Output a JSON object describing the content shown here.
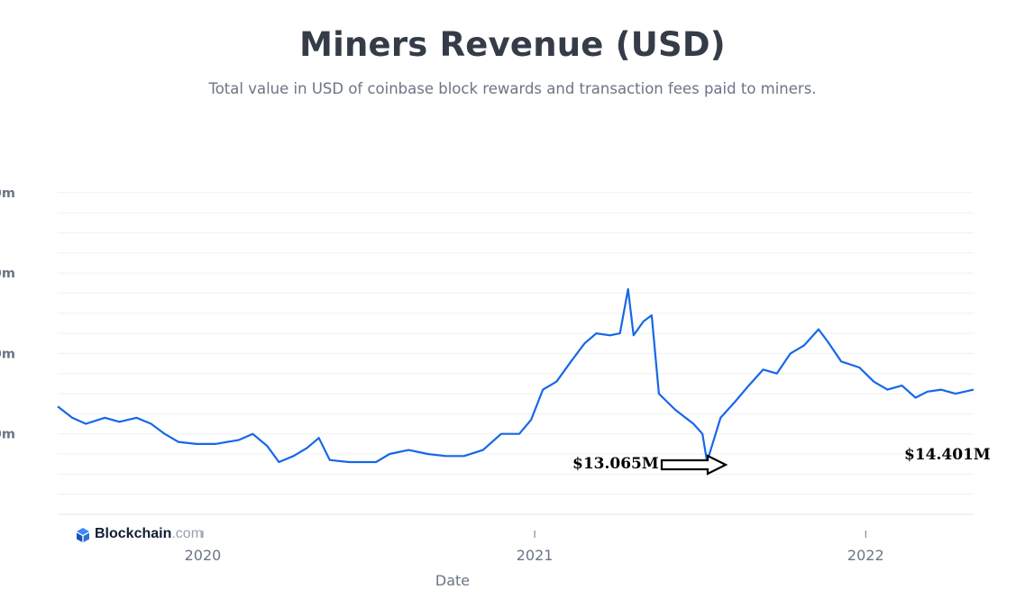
{
  "chart_data": {
    "type": "line",
    "title": "Miners Revenue (USD)",
    "subtitle": "Total value in USD of coinbase block rewards and transaction fees paid to miners.",
    "xlabel": "Date",
    "ylabel": "",
    "x_tick_labels": [
      "2020",
      "2021",
      "2022"
    ],
    "x_range": [
      "2019-07-25",
      "2022-04-30"
    ],
    "y_tick_labels": [
      "0m",
      "0m",
      "0m",
      "0m"
    ],
    "ylim": [
      0,
      80
    ],
    "grid": true,
    "line_color": "#1667e8",
    "series": [
      {
        "points": [
          [
            "2019-07-25",
            26.8
          ],
          [
            "2019-08-10",
            24
          ],
          [
            "2019-08-25",
            22.5
          ],
          [
            "2019-09-15",
            24
          ],
          [
            "2019-10-01",
            23
          ],
          [
            "2019-10-20",
            24
          ],
          [
            "2019-11-05",
            22.5
          ],
          [
            "2019-11-20",
            20
          ],
          [
            "2019-12-05",
            18
          ],
          [
            "2019-12-25",
            17.5
          ],
          [
            "2020-01-15",
            17.5
          ],
          [
            "2020-02-10",
            18.5
          ],
          [
            "2020-02-25",
            20
          ],
          [
            "2020-03-12",
            17
          ],
          [
            "2020-03-25",
            13
          ],
          [
            "2020-04-10",
            14.5
          ],
          [
            "2020-04-25",
            16.5
          ],
          [
            "2020-05-08",
            19
          ],
          [
            "2020-05-20",
            13.5
          ],
          [
            "2020-06-10",
            13
          ],
          [
            "2020-06-25",
            13
          ],
          [
            "2020-07-10",
            13
          ],
          [
            "2020-07-25",
            15
          ],
          [
            "2020-08-15",
            16
          ],
          [
            "2020-09-05",
            15
          ],
          [
            "2020-09-25",
            14.5
          ],
          [
            "2020-10-15",
            14.5
          ],
          [
            "2020-11-05",
            16
          ],
          [
            "2020-11-25",
            20
          ],
          [
            "2020-12-15",
            20
          ],
          [
            "2020-12-28",
            23.5
          ],
          [
            "2021-01-10",
            31
          ],
          [
            "2021-01-25",
            33
          ],
          [
            "2021-02-10",
            38
          ],
          [
            "2021-02-25",
            42.5
          ],
          [
            "2021-03-10",
            45
          ],
          [
            "2021-03-25",
            44.5
          ],
          [
            "2021-04-05",
            45
          ],
          [
            "2021-04-14",
            56
          ],
          [
            "2021-04-20",
            44.5
          ],
          [
            "2021-05-01",
            48
          ],
          [
            "2021-05-10",
            49.5
          ],
          [
            "2021-05-18",
            30
          ],
          [
            "2021-06-05",
            26
          ],
          [
            "2021-06-25",
            22.5
          ],
          [
            "2021-07-05",
            20
          ],
          [
            "2021-07-10",
            13.065
          ],
          [
            "2021-07-25",
            24
          ],
          [
            "2021-08-10",
            28
          ],
          [
            "2021-08-25",
            32
          ],
          [
            "2021-09-10",
            36
          ],
          [
            "2021-09-25",
            35
          ],
          [
            "2021-10-10",
            40
          ],
          [
            "2021-10-25",
            42
          ],
          [
            "2021-11-10",
            46
          ],
          [
            "2021-11-20",
            43
          ],
          [
            "2021-12-05",
            38
          ],
          [
            "2021-12-25",
            36.5
          ],
          [
            "2022-01-10",
            33
          ],
          [
            "2022-01-25",
            31
          ],
          [
            "2022-02-10",
            32
          ],
          [
            "2022-02-25",
            29
          ],
          [
            "2022-03-10",
            30.5
          ],
          [
            "2022-03-25",
            31
          ],
          [
            "2022-04-10",
            30
          ],
          [
            "2022-04-30",
            31
          ]
        ]
      }
    ],
    "annotations": [
      "$13.065M",
      "$14.401M"
    ]
  },
  "brand": {
    "name": "Blockchain",
    "suffix": ".com"
  }
}
